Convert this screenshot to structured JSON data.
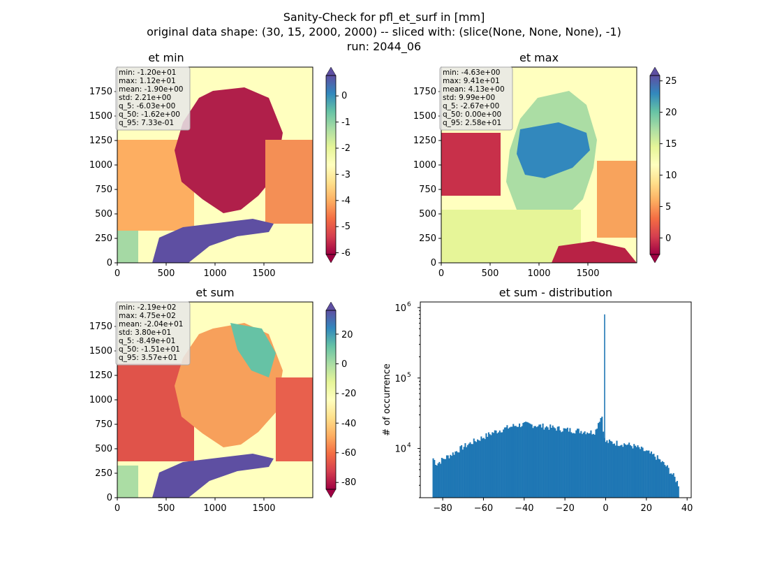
{
  "figure": {
    "suptitle": [
      "Sanity-Check for pfl_et_surf in [mm]",
      "original data shape: (30, 15, 2000, 2000) -- sliced with: (slice(None, None, None), -1)",
      "run: 2044_06"
    ]
  },
  "chart_data": [
    {
      "type": "heatmap",
      "title": "et min",
      "colormap": "Spectral",
      "colorbar": {
        "range": [
          -6.03,
          0.733
        ],
        "ticks": [
          0,
          -1,
          -2,
          -3,
          -4,
          -5,
          -6
        ],
        "extend": "both"
      },
      "xlim": [
        0,
        2000
      ],
      "ylim": [
        0,
        2000
      ],
      "xticks": [
        0,
        500,
        1000,
        1500
      ],
      "yticks": [
        0,
        250,
        500,
        750,
        1000,
        1250,
        1500,
        1750
      ],
      "stats": [
        "min: -1.20e+01",
        "max: 1.12e+01",
        "mean: -1.90e+00",
        "std: 2.21e+00",
        "q_5: -6.03e+00",
        "q_50: -1.62e+00",
        "q_95: 7.33e-01"
      ]
    },
    {
      "type": "heatmap",
      "title": "et max",
      "colormap": "Spectral",
      "colorbar": {
        "range": [
          -2.67,
          25.8
        ],
        "ticks": [
          25,
          20,
          15,
          10,
          5,
          0
        ],
        "extend": "both"
      },
      "xlim": [
        0,
        2000
      ],
      "ylim": [
        0,
        2000
      ],
      "xticks": [
        0,
        500,
        1000,
        1500
      ],
      "yticks": [
        0,
        250,
        500,
        750,
        1000,
        1250,
        1500,
        1750
      ],
      "stats": [
        "min: -4.63e+00",
        "max: 9.41e+01",
        "mean: 4.13e+00",
        "std: 9.99e+00",
        "q_5: -2.67e+00",
        "q_50: 0.00e+00",
        "q_95: 2.58e+01"
      ]
    },
    {
      "type": "heatmap",
      "title": "et sum",
      "colormap": "Spectral",
      "colorbar": {
        "range": [
          -84.9,
          35.7
        ],
        "ticks": [
          20,
          0,
          -20,
          -40,
          -60,
          -80
        ],
        "extend": "both"
      },
      "xlim": [
        0,
        2000
      ],
      "ylim": [
        0,
        2000
      ],
      "xticks": [
        0,
        500,
        1000,
        1500
      ],
      "yticks": [
        0,
        250,
        500,
        750,
        1000,
        1250,
        1500,
        1750
      ],
      "stats": [
        "min: -2.19e+02",
        "max: 4.75e+02",
        "mean: -2.04e+01",
        "std: 3.80e+01",
        "q_5: -8.49e+01",
        "q_50: -1.51e+01",
        "q_95: 3.57e+01"
      ]
    },
    {
      "type": "bar",
      "title": "et sum - distribution",
      "ylabel": "# of occurrence",
      "xlabel": "",
      "yscale": "log",
      "xlim": [
        -91,
        42
      ],
      "ylim": [
        2000,
        1200000
      ],
      "xticks": [
        -80,
        -60,
        -40,
        -20,
        0,
        20,
        40
      ],
      "yticks": [
        {
          "value": 10000,
          "label": "10",
          "exp": "4"
        },
        {
          "value": 100000,
          "label": "10",
          "exp": "5"
        },
        {
          "value": 1000000,
          "label": "10",
          "exp": "6"
        }
      ],
      "color": "#1f77b4",
      "bin_range": [
        -85,
        36
      ],
      "bin_count": 200,
      "profile": [
        [
          -85,
          7500
        ],
        [
          -83,
          6000
        ],
        [
          -80,
          7000
        ],
        [
          -75,
          8500
        ],
        [
          -70,
          10500
        ],
        [
          -65,
          12500
        ],
        [
          -60,
          14500
        ],
        [
          -55,
          17000
        ],
        [
          -50,
          19000
        ],
        [
          -45,
          21000
        ],
        [
          -40,
          22000
        ],
        [
          -35,
          21500
        ],
        [
          -30,
          20500
        ],
        [
          -25,
          19500
        ],
        [
          -20,
          18500
        ],
        [
          -15,
          18000
        ],
        [
          -10,
          17500
        ],
        [
          -7,
          17000
        ],
        [
          -5,
          17500
        ],
        [
          -4,
          22000
        ],
        [
          -3,
          26000
        ],
        [
          -2,
          28000
        ],
        [
          -1.5,
          30000
        ],
        [
          -1,
          14000
        ],
        [
          0,
          12500
        ],
        [
          5,
          12000
        ],
        [
          10,
          11500
        ],
        [
          15,
          10500
        ],
        [
          20,
          9000
        ],
        [
          25,
          7500
        ],
        [
          30,
          5500
        ],
        [
          34,
          3800
        ],
        [
          36,
          3000
        ]
      ],
      "peak": {
        "x": -0.5,
        "y": 800000
      }
    }
  ]
}
